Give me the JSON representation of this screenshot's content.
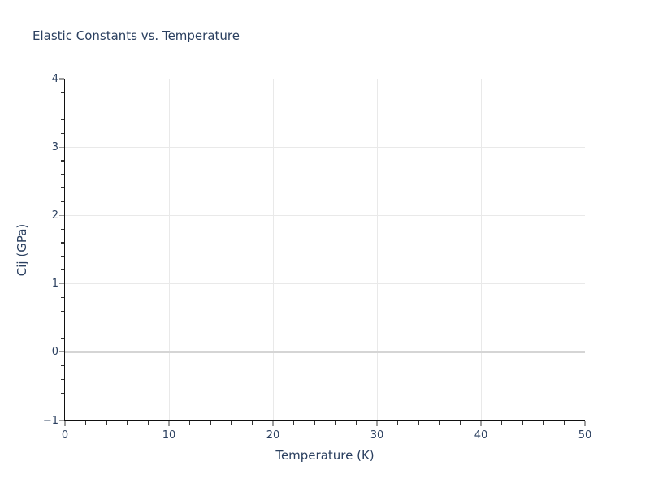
{
  "chart_data": {
    "type": "scatter",
    "title": "Elastic Constants vs. Temperature",
    "xlabel": "Temperature (K)",
    "ylabel": "Cij (GPa)",
    "xlim": [
      0,
      50
    ],
    "ylim": [
      -1,
      4
    ],
    "x_ticks": [
      {
        "value": 0,
        "label": "0"
      },
      {
        "value": 10,
        "label": "10"
      },
      {
        "value": 20,
        "label": "20"
      },
      {
        "value": 30,
        "label": "30"
      },
      {
        "value": 40,
        "label": "40"
      },
      {
        "value": 50,
        "label": "50"
      }
    ],
    "x_minor_step": 2,
    "y_ticks": [
      {
        "value": -1,
        "label": "−1"
      },
      {
        "value": 0,
        "label": "0"
      },
      {
        "value": 1,
        "label": "1"
      },
      {
        "value": 2,
        "label": "2"
      },
      {
        "value": 3,
        "label": "3"
      },
      {
        "value": 4,
        "label": "4"
      }
    ],
    "y_minor_step": 0.2,
    "grid": true,
    "zeroline_y": 0,
    "legend": false,
    "series": [],
    "colors": {
      "text": "#2a3f5f",
      "grid": "#e9e9e9",
      "zeroline": "#d5d5d5",
      "axis": "#111111",
      "tick_major": "#9e9e9e",
      "tick_minor": "#333333",
      "background": "#ffffff"
    }
  }
}
